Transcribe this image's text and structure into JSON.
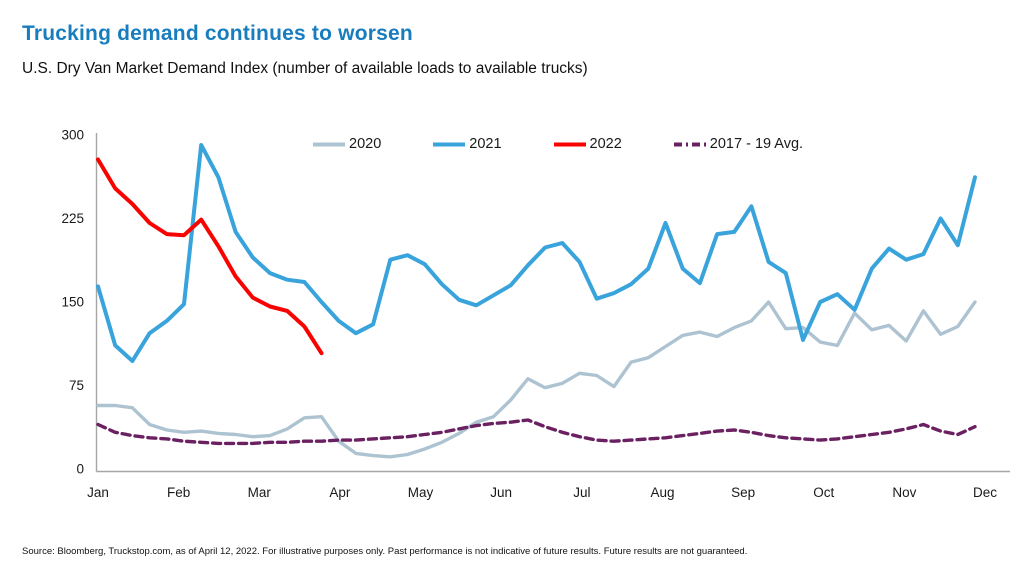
{
  "title": "Trucking demand continues to worsen",
  "subtitle": "U.S. Dry Van Market Demand Index (number of available loads to available trucks)",
  "source": "Source: Bloomberg, Truckstop.com, as of April 12, 2022. For illustrative purposes only. Past performance is not indicative of future results. Future results are not guaranteed.",
  "colors": {
    "title_blue": "#187DBE",
    "axis_line": "#A6A6A6",
    "tick_text": "#1A1A1A"
  },
  "chart_data": {
    "type": "line",
    "title": "U.S. Dry Van Market Demand Index",
    "xlabel": "",
    "ylabel": "",
    "x_unit": "week",
    "ylim": [
      0,
      300
    ],
    "yticks": [
      300,
      225,
      150,
      75,
      0
    ],
    "grid": false,
    "legend_position": "top",
    "months": [
      "Jan",
      "Feb",
      "Mar",
      "Apr",
      "May",
      "Jun",
      "Jul",
      "Aug",
      "Sep",
      "Oct",
      "Nov",
      "Dec"
    ],
    "series": [
      {
        "name": "2020",
        "color": "#AEC3D1",
        "width": 3.4,
        "dash": null,
        "legend_dash": null,
        "values": [
          57,
          57,
          55,
          40,
          35,
          33,
          34,
          32,
          31,
          29,
          30,
          36,
          46,
          47,
          25,
          14,
          12,
          11,
          13,
          18,
          24,
          32,
          42,
          47,
          62,
          81,
          73,
          77,
          86,
          84,
          74,
          96,
          100,
          110,
          120,
          123,
          119,
          127,
          133,
          150,
          126,
          127,
          114,
          111,
          140,
          125,
          129,
          115,
          142,
          121,
          128,
          150
        ]
      },
      {
        "name": "2021",
        "color": "#39A3DC",
        "width": 4,
        "dash": null,
        "legend_dash": null,
        "values": [
          164,
          111,
          97,
          122,
          133,
          148,
          291,
          262,
          213,
          190,
          176,
          170,
          168,
          150,
          133,
          122,
          130,
          188,
          192,
          184,
          166,
          152,
          147,
          156,
          165,
          183,
          199,
          203,
          186,
          153,
          158,
          166,
          180,
          221,
          180,
          167,
          211,
          213,
          236,
          186,
          176,
          116,
          150,
          157,
          143,
          180,
          198,
          188,
          193,
          225,
          201,
          262
        ]
      },
      {
        "name": "2022",
        "color": "#F90301",
        "width": 4,
        "dash": null,
        "legend_dash": null,
        "values": [
          278,
          252,
          238,
          221,
          211,
          210,
          224,
          200,
          173,
          154,
          146,
          142,
          128,
          104
        ]
      },
      {
        "name": "2017 - 19 Avg.",
        "color": "#6B2161",
        "width": 3.4,
        "dash": "8 5",
        "legend_dash": "8 4 2 4",
        "values": [
          40,
          33,
          30,
          28,
          27,
          25,
          24,
          23,
          23,
          23,
          24,
          24,
          25,
          25,
          26,
          26,
          27,
          28,
          29,
          31,
          33,
          36,
          39,
          41,
          42,
          44,
          38,
          33,
          29,
          26,
          25,
          26,
          27,
          28,
          30,
          32,
          34,
          35,
          33,
          30,
          28,
          27,
          26,
          27,
          29,
          31,
          33,
          36,
          40,
          34,
          31,
          38
        ]
      }
    ]
  }
}
